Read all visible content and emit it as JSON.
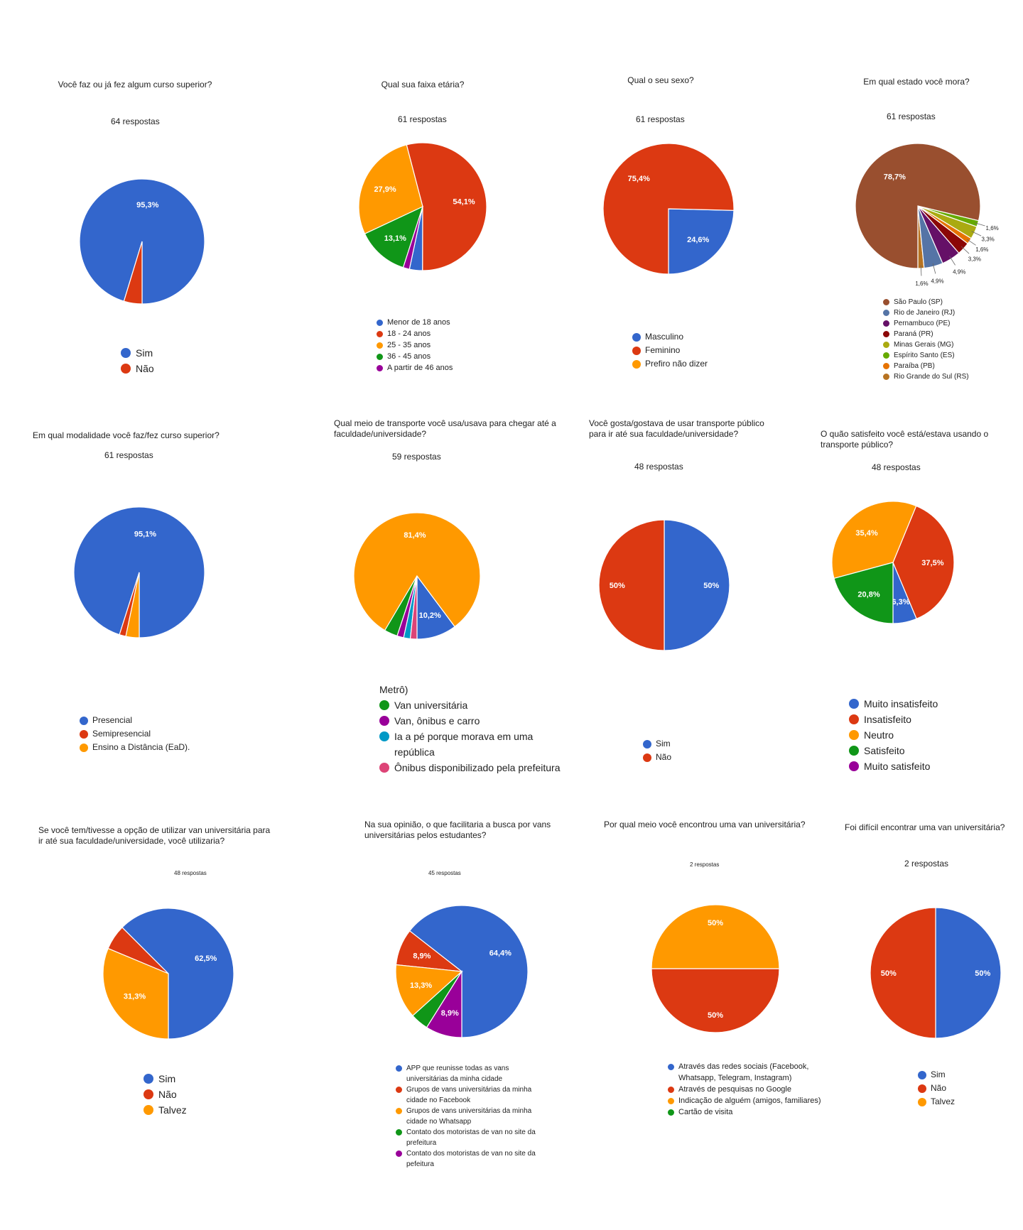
{
  "chart_data": [
    {
      "type": "pie",
      "title": "Você faz ou já fez algum curso superior?",
      "subtitle": "64 respostas",
      "slices": [
        {
          "label": "Sim",
          "value": 95.3,
          "color": "#3366cc",
          "display": "95,3%"
        },
        {
          "label": "Não",
          "value": 4.7,
          "color": "#dc3912",
          "display": ""
        }
      ]
    },
    {
      "type": "pie",
      "title": "Qual sua faixa etária?",
      "subtitle": "61 respostas",
      "slices": [
        {
          "label": "Menor de 18 anos",
          "value": 3.3,
          "color": "#3366cc",
          "display": ""
        },
        {
          "label": "18 - 24 anos",
          "value": 54.1,
          "color": "#dc3912",
          "display": "54,1%"
        },
        {
          "label": "25 - 35 anos",
          "value": 27.9,
          "color": "#ff9900",
          "display": "27,9%"
        },
        {
          "label": "36 - 45 anos",
          "value": 13.1,
          "color": "#109618",
          "display": "13,1%"
        },
        {
          "label": "A partir de 46 anos",
          "value": 1.6,
          "color": "#990099",
          "display": ""
        }
      ]
    },
    {
      "type": "pie",
      "title": "Qual o seu sexo?",
      "subtitle": "61 respostas",
      "slices": [
        {
          "label": "Masculino",
          "value": 24.6,
          "color": "#3366cc",
          "display": "24,6%"
        },
        {
          "label": "Feminino",
          "value": 75.4,
          "color": "#dc3912",
          "display": "75,4%"
        },
        {
          "label": "Prefiro não dizer",
          "value": 0,
          "color": "#ff9900",
          "display": ""
        }
      ]
    },
    {
      "type": "pie",
      "title": "Em qual estado você mora?",
      "subtitle": "61 respostas",
      "slices": [
        {
          "label": "Rio Grande do Sul (RS)",
          "value": 1.6,
          "color": "#b77322",
          "display": "1,6%"
        },
        {
          "label": "Rio de Janeiro (RJ)",
          "value": 4.9,
          "color": "#5574a6",
          "display": "4,9%"
        },
        {
          "label": "Pernambuco (PE)",
          "value": 4.9,
          "color": "#651067",
          "display": "4,9%"
        },
        {
          "label": "Paraná (PR)",
          "value": 3.3,
          "color": "#8b0707",
          "display": "3,3%"
        },
        {
          "label": "Paraíba (PB)",
          "value": 1.6,
          "color": "#e67300",
          "display": "1,6%"
        },
        {
          "label": "Minas Gerais (MG)",
          "value": 3.3,
          "color": "#aaaa11",
          "display": "3,3%"
        },
        {
          "label": "Espírito Santo (ES)",
          "value": 1.6,
          "color": "#66aa00",
          "display": "1,6%"
        },
        {
          "label": "São Paulo (SP)",
          "value": 78.7,
          "color": "#994f2f",
          "display": "78,7%"
        }
      ],
      "legend": [
        {
          "label": "São Paulo (SP)",
          "color": "#994f2f"
        },
        {
          "label": "Rio de Janeiro (RJ)",
          "color": "#5574a6"
        },
        {
          "label": "Pernambuco (PE)",
          "color": "#651067"
        },
        {
          "label": "Paraná (PR)",
          "color": "#8b0707"
        },
        {
          "label": "Minas Gerais (MG)",
          "color": "#aaaa11"
        },
        {
          "label": "Espírito Santo (ES)",
          "color": "#66aa00"
        },
        {
          "label": "Paraíba (PB)",
          "color": "#e67300"
        },
        {
          "label": "Rio Grande do Sul (RS)",
          "color": "#b77322"
        }
      ]
    },
    {
      "type": "pie",
      "title": "Em qual modalidade você faz/fez curso superior?",
      "subtitle": "61 respostas",
      "slices": [
        {
          "label": "Presencial",
          "value": 95.1,
          "color": "#3366cc",
          "display": "95,1%"
        },
        {
          "label": "Semipresencial",
          "value": 1.6,
          "color": "#dc3912",
          "display": ""
        },
        {
          "label": "Ensino a Distância (EaD).",
          "value": 3.3,
          "color": "#ff9900",
          "display": ""
        }
      ]
    },
    {
      "type": "pie",
      "title": "Qual meio de transporte você usa/usava para chegar até a faculdade/universidade?",
      "subtitle": "59 respostas",
      "slices": [
        {
          "label": "",
          "value": 10.2,
          "color": "#3366cc",
          "display": "10,2%"
        },
        {
          "label": "Metrô)",
          "value": 81.4,
          "color": "#ff9900",
          "display": "81,4%"
        },
        {
          "label": "Van universitária",
          "value": 3.4,
          "color": "#109618",
          "display": ""
        },
        {
          "label": "Van, ônibus e carro",
          "value": 1.7,
          "color": "#990099",
          "display": ""
        },
        {
          "label": "Ia a pé porque morava em uma república",
          "value": 1.7,
          "color": "#0099c6",
          "display": ""
        },
        {
          "label": "Ônibus disponibilizado pela prefeitura",
          "value": 1.7,
          "color": "#dd4477",
          "display": ""
        }
      ]
    },
    {
      "type": "pie",
      "title": "Você gosta/gostava de usar transporte público para ir até sua faculdade/universidade?",
      "subtitle": "48 respostas",
      "slices": [
        {
          "label": "Sim",
          "value": 50,
          "color": "#3366cc",
          "display": "50%"
        },
        {
          "label": "Não",
          "value": 50,
          "color": "#dc3912",
          "display": "50%"
        }
      ]
    },
    {
      "type": "pie",
      "title": "O quão satisfeito você está/estava usando o transporte público?",
      "subtitle": "48 respostas",
      "slices": [
        {
          "label": "Muito insatisfeito",
          "value": 6.3,
          "color": "#3366cc",
          "display": "6,3%"
        },
        {
          "label": "Insatisfeito",
          "value": 37.5,
          "color": "#dc3912",
          "display": "37,5%"
        },
        {
          "label": "Neutro",
          "value": 35.4,
          "color": "#ff9900",
          "display": "35,4%"
        },
        {
          "label": "Satisfeito",
          "value": 20.8,
          "color": "#109618",
          "display": "20,8%"
        },
        {
          "label": "Muito satisfeito",
          "value": 0,
          "color": "#990099",
          "display": ""
        }
      ]
    },
    {
      "type": "pie",
      "title": "Se você tem/tivesse a opção de utilizar van universitária para ir até sua faculdade/universidade, você utilizaria?",
      "subtitle": "48 respostas",
      "slices": [
        {
          "label": "Sim",
          "value": 62.5,
          "color": "#3366cc",
          "display": "62,5%"
        },
        {
          "label": "Não",
          "value": 6.2,
          "color": "#dc3912",
          "display": ""
        },
        {
          "label": "Talvez",
          "value": 31.3,
          "color": "#ff9900",
          "display": "31,3%"
        }
      ]
    },
    {
      "type": "pie",
      "title": "Na sua opinião, o que facilitaria a busca por vans universitárias pelos estudantes?",
      "subtitle": "45 respostas",
      "slices": [
        {
          "label": "APP que reunisse todas as vans universitárias da minha cidade",
          "value": 64.4,
          "color": "#3366cc",
          "display": "64,4%"
        },
        {
          "label": "Grupos de vans universitárias da minha cidade no Facebook",
          "value": 8.9,
          "color": "#dc3912",
          "display": "8,9%"
        },
        {
          "label": "Grupos de vans universitárias da minha cidade no Whatsapp",
          "value": 13.3,
          "color": "#ff9900",
          "display": "13,3%"
        },
        {
          "label": "Contato dos motoristas de van no site da prefeitura",
          "value": 4.4,
          "color": "#109618",
          "display": ""
        },
        {
          "label": "Contato dos motoristas de van no site da pefeitura",
          "value": 8.9,
          "color": "#990099",
          "display": "8,9%"
        }
      ]
    },
    {
      "type": "pie",
      "title": "Por qual meio você encontrou uma van universitária?",
      "subtitle": "2 respostas",
      "slices": [
        {
          "label": "Através das redes sociais (Facebook, Whatsapp, Telegram, Instagram)",
          "value": 0,
          "color": "#3366cc",
          "display": ""
        },
        {
          "label": "Através de pesquisas no Google",
          "value": 50,
          "color": "#dc3912",
          "display": "50%"
        },
        {
          "label": "Indicação de alguém (amigos, familiares)",
          "value": 50,
          "color": "#ff9900",
          "display": "50%"
        },
        {
          "label": "Cartão de visita",
          "value": 0,
          "color": "#109618",
          "display": ""
        }
      ]
    },
    {
      "type": "pie",
      "title": "Foi difícil encontrar uma van universitária?",
      "subtitle": "2 respostas",
      "slices": [
        {
          "label": "Sim",
          "value": 50,
          "color": "#3366cc",
          "display": "50%"
        },
        {
          "label": "Não",
          "value": 50,
          "color": "#dc3912",
          "display": "50%"
        },
        {
          "label": "Talvez",
          "value": 0,
          "color": "#ff9900",
          "display": ""
        }
      ]
    }
  ]
}
